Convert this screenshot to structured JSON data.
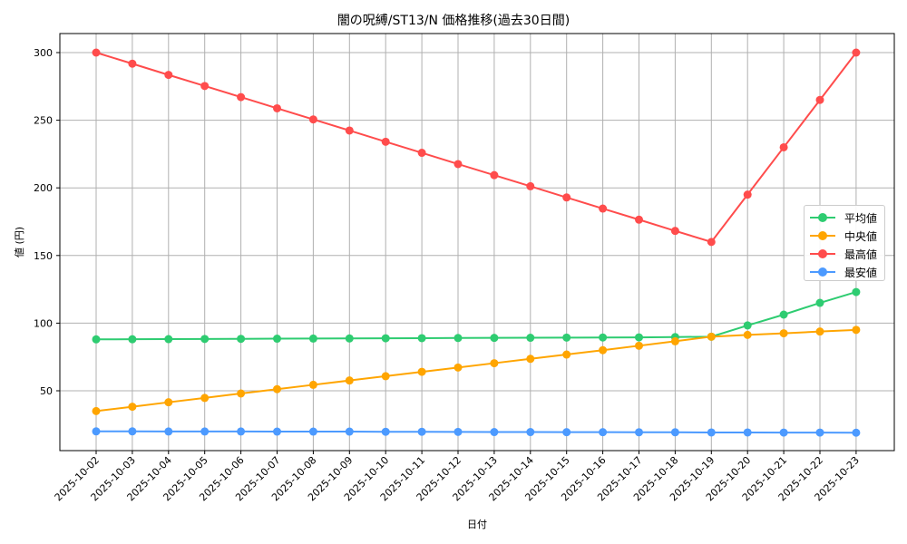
{
  "chart_data": {
    "type": "line",
    "title": "闇の呪縛/ST13/N 価格推移(過去30日間)",
    "xlabel": "日付",
    "ylabel": "値 (円)",
    "ylim": [
      10,
      315
    ],
    "yticks": [
      50,
      100,
      150,
      200,
      250,
      300
    ],
    "grid": true,
    "legend_position": "center right",
    "categories": [
      "2025-10-02",
      "2025-10-03",
      "2025-10-04",
      "2025-10-05",
      "2025-10-06",
      "2025-10-07",
      "2025-10-08",
      "2025-10-09",
      "2025-10-10",
      "2025-10-11",
      "2025-10-12",
      "2025-10-13",
      "2025-10-14",
      "2025-10-15",
      "2025-10-16",
      "2025-10-17",
      "2025-10-18",
      "2025-10-19",
      "2025-10-20",
      "2025-10-21",
      "2025-10-22",
      "2025-10-23"
    ],
    "series": [
      {
        "name": "平均値",
        "color": "#2ecc71",
        "values": [
          88.0,
          88.1,
          88.2,
          88.3,
          88.4,
          88.5,
          88.6,
          88.7,
          88.8,
          88.9,
          89.0,
          89.1,
          89.2,
          89.3,
          89.4,
          89.5,
          89.7,
          90.0,
          98.3,
          106.3,
          115.0,
          123.0
        ]
      },
      {
        "name": "中央値",
        "color": "#ffa500",
        "values": [
          35.0,
          38.2,
          41.5,
          44.7,
          48.0,
          51.2,
          54.4,
          57.6,
          60.8,
          64.0,
          67.2,
          70.4,
          73.6,
          76.8,
          80.0,
          83.3,
          86.6,
          90.0,
          91.3,
          92.5,
          93.8,
          95.0
        ]
      },
      {
        "name": "最高値",
        "color": "#ff4c4c",
        "values": [
          300.0,
          291.8,
          283.5,
          275.3,
          267.1,
          258.8,
          250.6,
          242.4,
          234.1,
          225.9,
          217.6,
          209.4,
          201.2,
          192.9,
          184.7,
          176.5,
          168.2,
          160.0,
          195.0,
          230.0,
          265.0,
          300.0
        ]
      },
      {
        "name": "最安値",
        "color": "#4c9aff",
        "values": [
          20.0,
          20.0,
          19.9,
          19.9,
          19.9,
          19.8,
          19.8,
          19.8,
          19.7,
          19.7,
          19.6,
          19.5,
          19.5,
          19.4,
          19.4,
          19.3,
          19.3,
          19.2,
          19.2,
          19.1,
          19.1,
          19.0
        ]
      }
    ]
  }
}
